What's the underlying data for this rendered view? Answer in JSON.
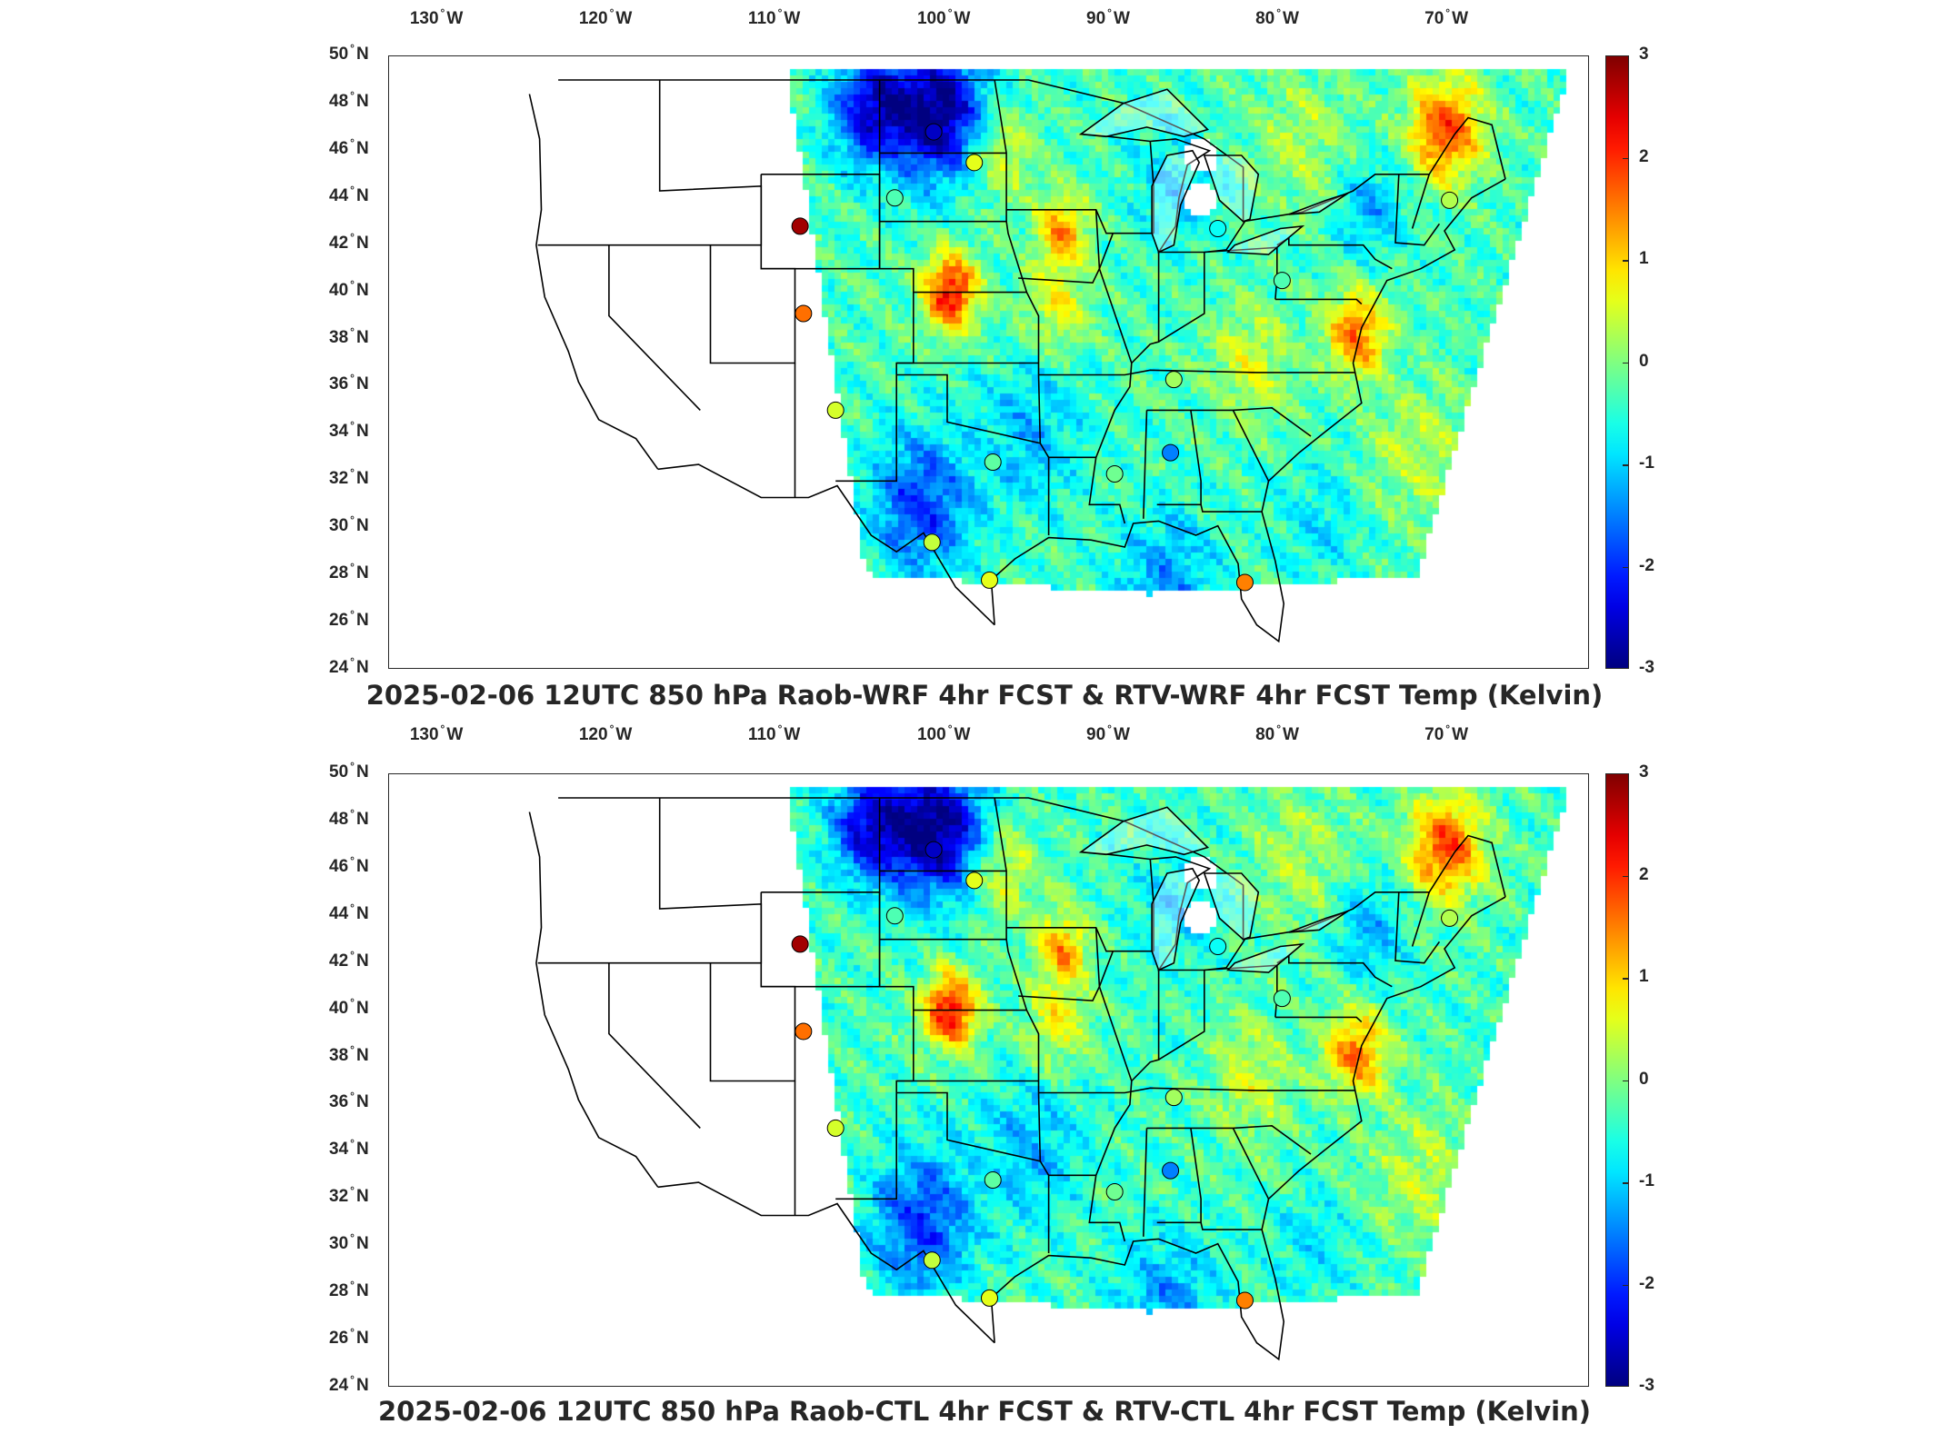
{
  "panels": [
    {
      "title": "2025-02-06 12UTC 850 hPa Raob-WRF 4hr FCST & RTV-WRF 4hr FCST Temp (Kelvin)"
    },
    {
      "title": "2025-02-06 12UTC 850 hPa Raob-CTL 4hr FCST & RTV-CTL 4hr FCST Temp (Kelvin)"
    }
  ],
  "lon_ticks": [
    {
      "deg": "130",
      "hemi": "W"
    },
    {
      "deg": "120",
      "hemi": "W"
    },
    {
      "deg": "110",
      "hemi": "W"
    },
    {
      "deg": "100",
      "hemi": "W"
    },
    {
      "deg": "90",
      "hemi": "W"
    },
    {
      "deg": "80",
      "hemi": "W"
    },
    {
      "deg": "70",
      "hemi": "W"
    }
  ],
  "lat_ticks": [
    {
      "deg": "50",
      "hemi": "N"
    },
    {
      "deg": "48",
      "hemi": "N"
    },
    {
      "deg": "46",
      "hemi": "N"
    },
    {
      "deg": "44",
      "hemi": "N"
    },
    {
      "deg": "42",
      "hemi": "N"
    },
    {
      "deg": "40",
      "hemi": "N"
    },
    {
      "deg": "38",
      "hemi": "N"
    },
    {
      "deg": "36",
      "hemi": "N"
    },
    {
      "deg": "34",
      "hemi": "N"
    },
    {
      "deg": "32",
      "hemi": "N"
    },
    {
      "deg": "30",
      "hemi": "N"
    },
    {
      "deg": "28",
      "hemi": "N"
    },
    {
      "deg": "26",
      "hemi": "N"
    },
    {
      "deg": "24",
      "hemi": "N"
    }
  ],
  "colorbar": {
    "min": -3,
    "max": 3,
    "colormap": "jet",
    "ticks": [
      "3",
      "2",
      "1",
      "0",
      "-1",
      "-2",
      "-3"
    ]
  },
  "stations": [
    {
      "lat": 46.8,
      "lon": -100.8,
      "v": -2.6
    },
    {
      "lat": 45.5,
      "lon": -98.4,
      "v": 0.6
    },
    {
      "lat": 44.0,
      "lon": -103.1,
      "v": -0.3
    },
    {
      "lat": 42.8,
      "lon": -108.7,
      "v": 2.8
    },
    {
      "lat": 39.1,
      "lon": -108.5,
      "v": 1.6
    },
    {
      "lat": 35.0,
      "lon": -106.6,
      "v": 0.5
    },
    {
      "lat": 32.8,
      "lon": -97.3,
      "v": -0.2
    },
    {
      "lat": 29.4,
      "lon": -100.9,
      "v": 0.4
    },
    {
      "lat": 27.8,
      "lon": -97.5,
      "v": 0.6
    },
    {
      "lat": 36.3,
      "lon": -86.6,
      "v": 0.2
    },
    {
      "lat": 32.3,
      "lon": -90.1,
      "v": -0.1
    },
    {
      "lat": 33.2,
      "lon": -86.8,
      "v": -1.5
    },
    {
      "lat": 27.7,
      "lon": -82.4,
      "v": 1.5
    },
    {
      "lat": 42.7,
      "lon": -84.0,
      "v": -0.7
    },
    {
      "lat": 40.5,
      "lon": -80.2,
      "v": -0.3
    },
    {
      "lat": 43.9,
      "lon": -70.3,
      "v": 0.3
    }
  ]
}
